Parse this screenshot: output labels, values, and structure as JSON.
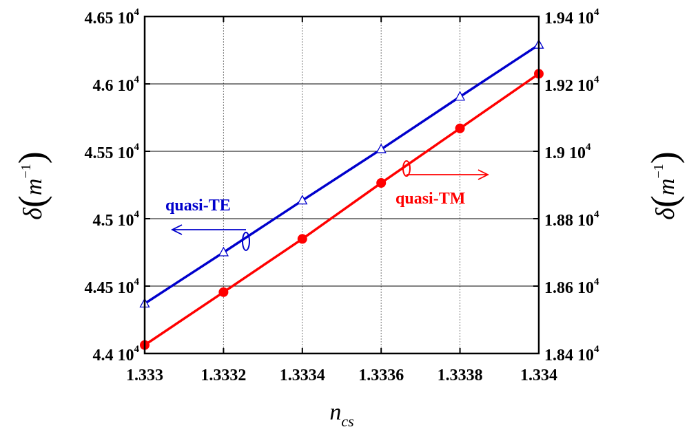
{
  "chart_data": {
    "type": "line",
    "x": [
      1.333,
      1.3332,
      1.3334,
      1.3336,
      1.3338,
      1.334
    ],
    "xlim": [
      1.333,
      1.334
    ],
    "xticks": [
      "1.333",
      "1.3332",
      "1.3334",
      "1.3336",
      "1.3338",
      "1.334"
    ],
    "xlabel": {
      "main": "n",
      "sub": "cs"
    },
    "ylabel_left": {
      "main": "δ",
      "open": "(",
      "base": "m",
      "exp": "−1",
      "close": ")"
    },
    "ylabel_right": {
      "main": "δ",
      "open": "(",
      "base": "m",
      "exp": "−1",
      "close": ")"
    },
    "ylim_left": [
      44000,
      46500
    ],
    "ylim_right": [
      18400,
      19400
    ],
    "yticks_left": [
      {
        "mant": "4.4",
        "base": "10",
        "exp": "4"
      },
      {
        "mant": "4.45",
        "base": "10",
        "exp": "4"
      },
      {
        "mant": "4.5",
        "base": "10",
        "exp": "4"
      },
      {
        "mant": "4.55",
        "base": "10",
        "exp": "4"
      },
      {
        "mant": "4.6",
        "base": "10",
        "exp": "4"
      },
      {
        "mant": "4.65",
        "base": "10",
        "exp": "4"
      }
    ],
    "yticks_right": [
      {
        "mant": "1.84",
        "base": "10",
        "exp": "4"
      },
      {
        "mant": "1.86",
        "base": "10",
        "exp": "4"
      },
      {
        "mant": "1.88",
        "base": "10",
        "exp": "4"
      },
      {
        "mant": "1.9",
        "base": "10",
        "exp": "4"
      },
      {
        "mant": "1.92",
        "base": "10",
        "exp": "4"
      },
      {
        "mant": "1.94",
        "base": "10",
        "exp": "4"
      }
    ],
    "grid": true,
    "series": [
      {
        "name": "quasi-TE",
        "axis": "left",
        "color": "#0000cc",
        "marker": "open-triangle",
        "values": [
          44370,
          44750,
          45135,
          45515,
          45905,
          46290
        ]
      },
      {
        "name": "quasi-TM",
        "axis": "right",
        "color": "#ff0000",
        "marker": "filled-circle",
        "values": [
          18425,
          18582,
          18740,
          18906,
          19068,
          19230
        ]
      }
    ]
  }
}
